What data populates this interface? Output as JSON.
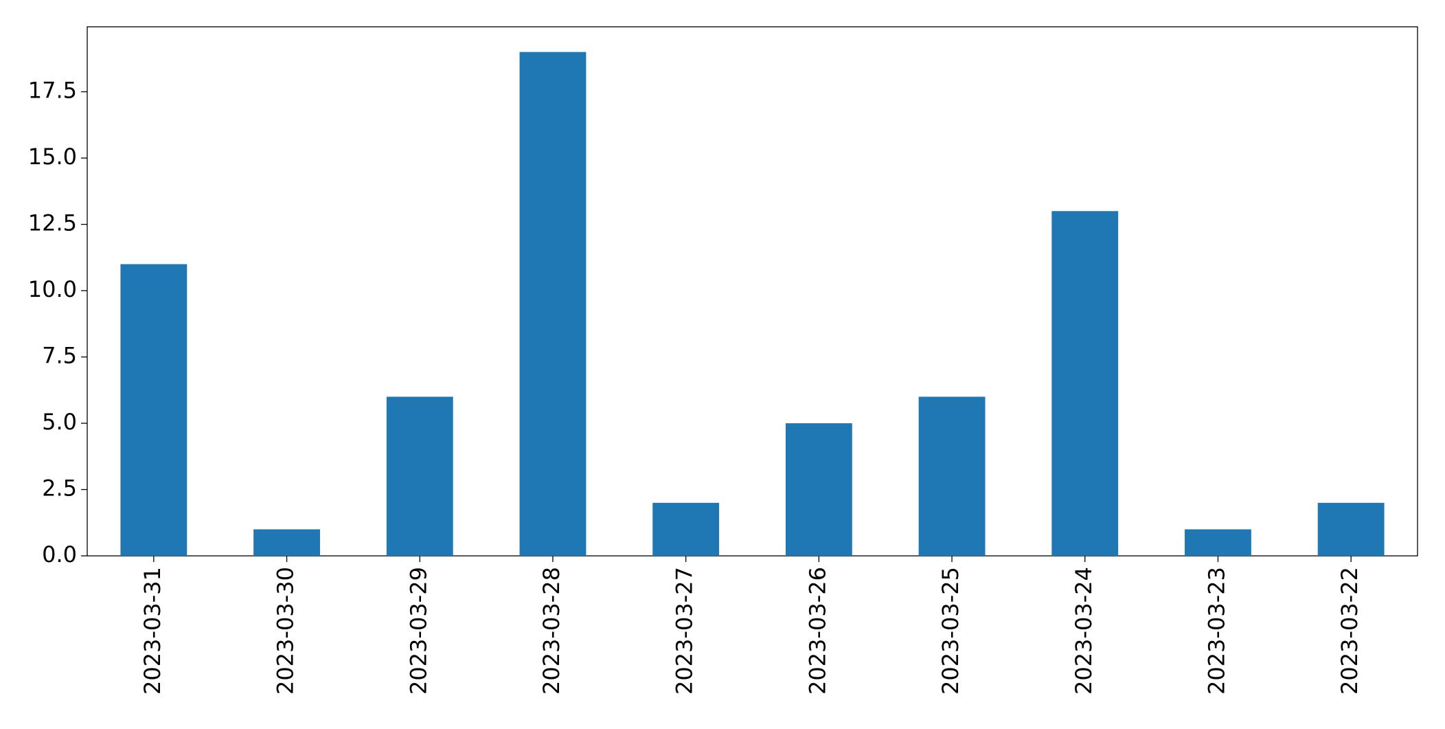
{
  "chart_data": {
    "type": "bar",
    "categories": [
      "2023-03-31",
      "2023-03-30",
      "2023-03-29",
      "2023-03-28",
      "2023-03-27",
      "2023-03-26",
      "2023-03-25",
      "2023-03-24",
      "2023-03-23",
      "2023-03-22"
    ],
    "values": [
      11,
      1,
      6,
      19,
      2,
      5,
      6,
      13,
      1,
      2
    ],
    "color": "#1f77b4",
    "ylim": [
      0,
      19.95
    ],
    "yticks": [
      {
        "value": 0,
        "label": "0.0"
      },
      2.5,
      {
        "value": 5,
        "label": "5.0"
      },
      7.5,
      {
        "value": 10,
        "label": "10.0"
      },
      12.5,
      {
        "value": 15,
        "label": "15.0"
      },
      17.5
    ],
    "grid": false
  }
}
